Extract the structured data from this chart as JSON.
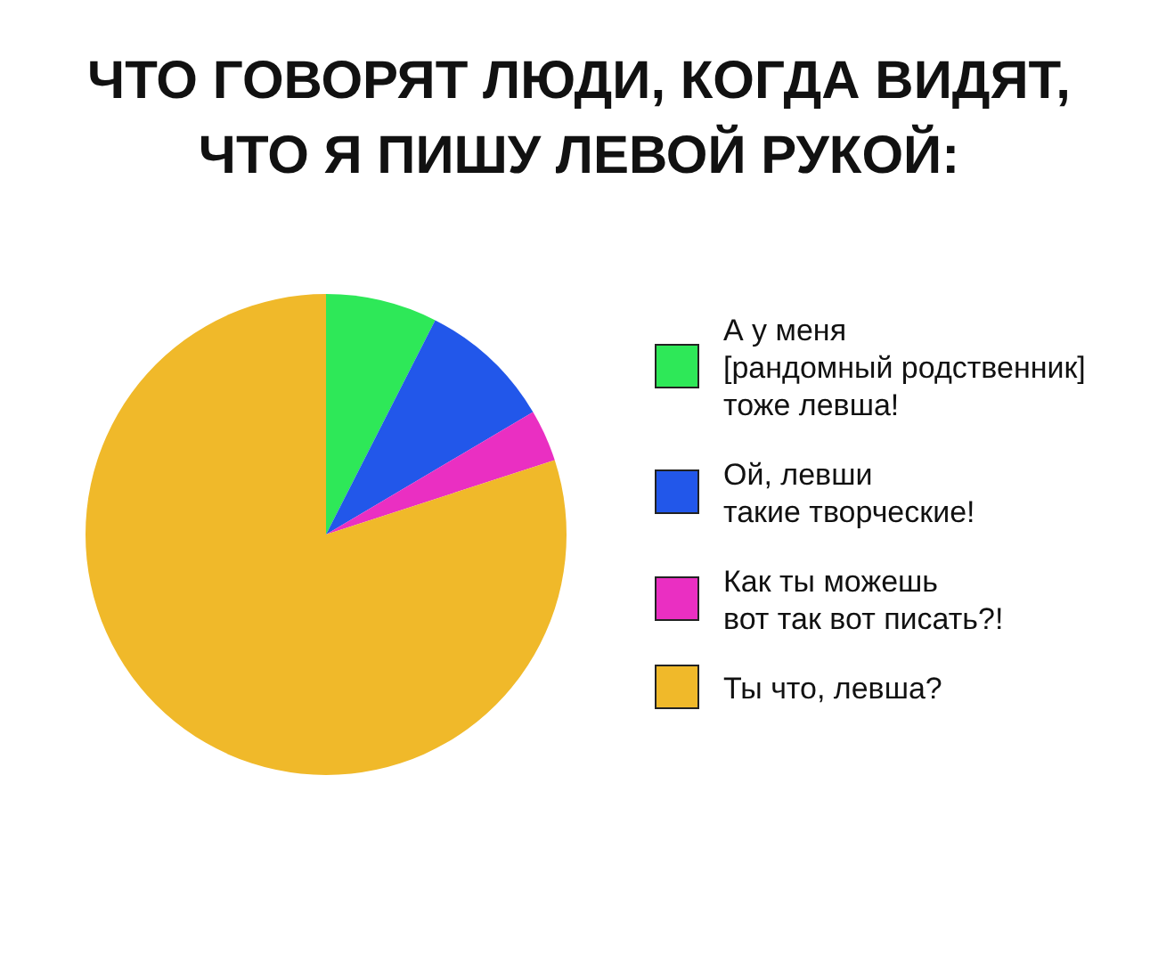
{
  "chart_data": {
    "type": "pie",
    "title": "ЧТО ГОВОРЯТ ЛЮДИ, КОГДА ВИДЯТ,\nЧТО Я ПИШУ ЛЕВОЙ РУКОЙ:",
    "categories": [
      "А у меня\n[рандомный родственник]\nтоже левша!",
      "Ой, левши\nтакие творческие!",
      "Как ты можешь\nвот так вот писать?!",
      "Ты что, левша?"
    ],
    "values": [
      7.5,
      9,
      3.5,
      80
    ],
    "colors": [
      "#2ee858",
      "#2257ea",
      "#ea2fc2",
      "#f0b92a"
    ],
    "legend": "right"
  }
}
